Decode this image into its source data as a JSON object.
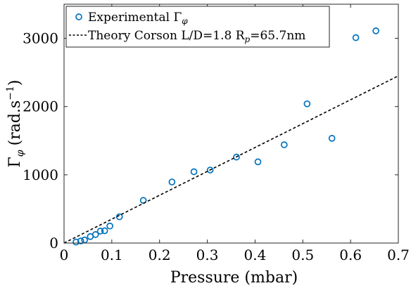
{
  "chart_data": {
    "type": "scatter",
    "title": "",
    "xlabel": "Pressure (mbar)",
    "ylabel": {
      "base": "Γ",
      "sub": "φ",
      "units_prefix": "(rad.s",
      "units_exp": "−1",
      "units_suffix": ")"
    },
    "xlim": [
      0,
      0.7
    ],
    "ylim": [
      0,
      3500
    ],
    "xticks": [
      0,
      0.1,
      0.2,
      0.3,
      0.4,
      0.5,
      0.6,
      0.7
    ],
    "xtick_labels": [
      "0",
      "0.1",
      "0.2",
      "0.3",
      "0.4",
      "0.5",
      "0.6",
      "0.7"
    ],
    "yticks": [
      0,
      1000,
      2000,
      3000
    ],
    "ytick_labels": [
      "0",
      "1000",
      "2000",
      "3000"
    ],
    "grid": false,
    "legend_position": "top-left",
    "series": [
      {
        "type": "scatter",
        "legend": {
          "text": "Experimental Γ",
          "sub": "φ"
        },
        "color": "#0072BD",
        "marker": "open-circle",
        "points": [
          {
            "x": 0.025,
            "y": 15
          },
          {
            "x": 0.035,
            "y": 30
          },
          {
            "x": 0.043,
            "y": 45
          },
          {
            "x": 0.055,
            "y": 95
          },
          {
            "x": 0.066,
            "y": 125
          },
          {
            "x": 0.076,
            "y": 175
          },
          {
            "x": 0.085,
            "y": 180
          },
          {
            "x": 0.096,
            "y": 250
          },
          {
            "x": 0.116,
            "y": 385
          },
          {
            "x": 0.166,
            "y": 625
          },
          {
            "x": 0.226,
            "y": 895
          },
          {
            "x": 0.272,
            "y": 1045
          },
          {
            "x": 0.306,
            "y": 1070
          },
          {
            "x": 0.361,
            "y": 1260
          },
          {
            "x": 0.406,
            "y": 1190
          },
          {
            "x": 0.461,
            "y": 1440
          },
          {
            "x": 0.509,
            "y": 2040
          },
          {
            "x": 0.561,
            "y": 1535
          },
          {
            "x": 0.611,
            "y": 3010
          },
          {
            "x": 0.653,
            "y": 3110
          }
        ]
      },
      {
        "type": "line",
        "legend": {
          "text": "Theory Corson L/D=1.8 R",
          "sub": "p",
          "suffix": "=65.7nm"
        },
        "color": "#000000",
        "style": "dashed",
        "points": [
          {
            "x": 0,
            "y": 0
          },
          {
            "x": 0.7,
            "y": 2450
          }
        ]
      }
    ]
  }
}
